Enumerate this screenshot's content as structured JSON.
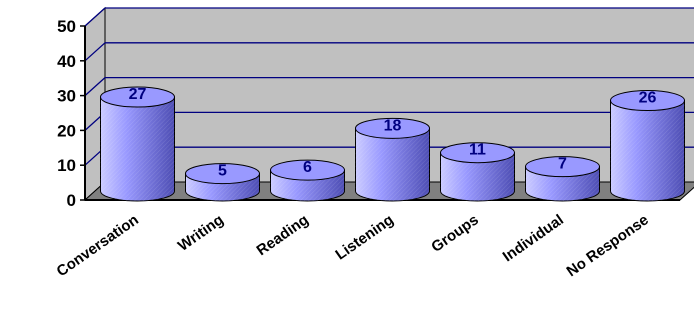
{
  "chart_data": {
    "type": "bar",
    "title": "",
    "xlabel": "",
    "ylabel": "",
    "categories": [
      "Conversation",
      "Writing",
      "Reading",
      "Listening",
      "Groups",
      "Individual",
      "No Response"
    ],
    "values": [
      27,
      5,
      6,
      18,
      11,
      7,
      26
    ],
    "data_labels": [
      "27",
      "5",
      "6",
      "18",
      "11",
      "7",
      "26"
    ],
    "ylim": [
      0,
      50
    ],
    "yticks": [
      "0",
      "10",
      "20",
      "30",
      "40",
      "50"
    ],
    "grid": true,
    "legend": "none",
    "style": "3d-cylinder"
  },
  "colors": {
    "wall": "#c0c0c0",
    "floor": "#808080",
    "gridline": "#000080",
    "bar_face": "#9999ff",
    "bar_shade": "#4d4db3",
    "bar_light": "#ccccff",
    "data_label": "#000080",
    "axis": "#000000"
  }
}
